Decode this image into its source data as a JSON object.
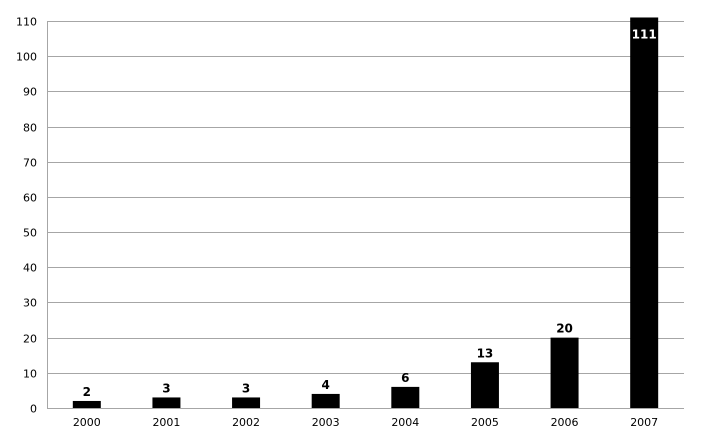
{
  "chart_data": {
    "type": "bar",
    "title": "",
    "xlabel": "",
    "ylabel": "",
    "categories": [
      "2000",
      "2001",
      "2002",
      "2003",
      "2004",
      "2005",
      "2006",
      "2007"
    ],
    "values": [
      2,
      3,
      3,
      4,
      6,
      13,
      20,
      111
    ],
    "ylim": [
      0,
      110
    ],
    "yticks": [
      0,
      10,
      20,
      30,
      40,
      50,
      60,
      70,
      80,
      90,
      100,
      110
    ],
    "grid": true,
    "legend": "none",
    "bar_color": "#000000",
    "grid_color": "#a6a6a6"
  }
}
